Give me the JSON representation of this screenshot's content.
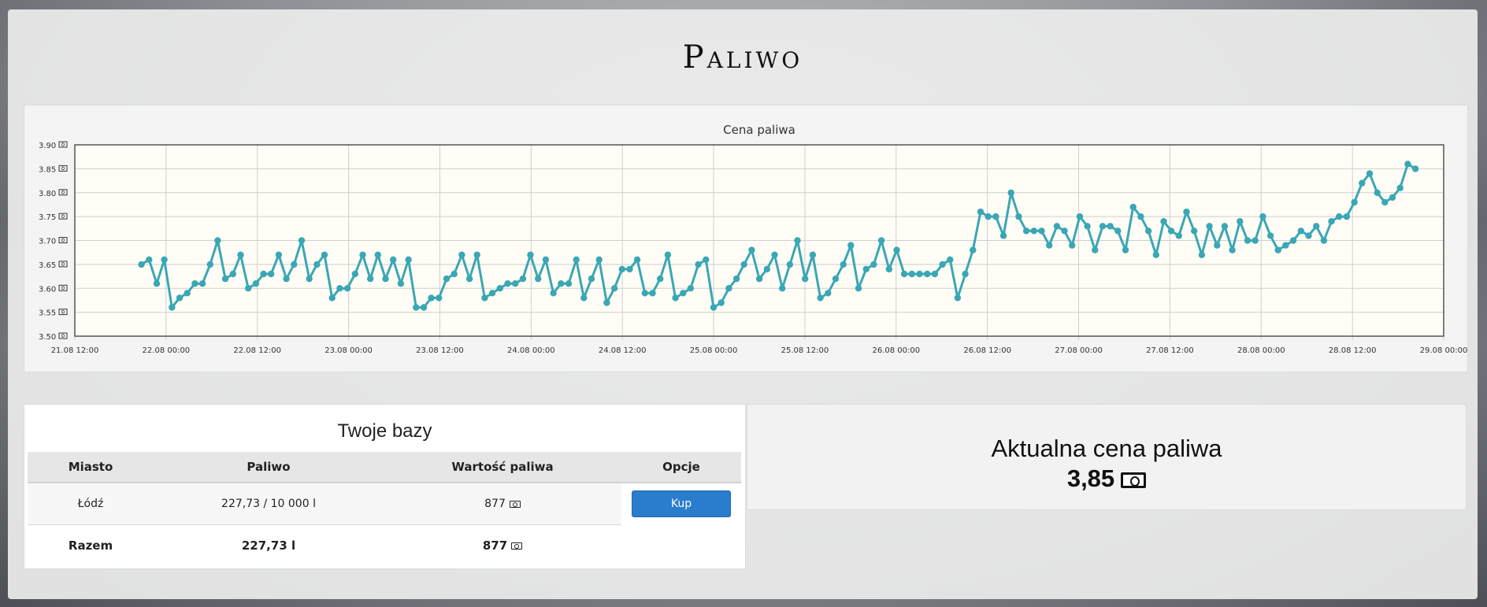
{
  "page": {
    "title": "Paliwo"
  },
  "chart_data": {
    "type": "line",
    "title": "Cena paliwa",
    "y_tick_labels": [
      "3.50",
      "3.55",
      "3.60",
      "3.65",
      "3.70",
      "3.75",
      "3.80",
      "3.85",
      "3.90"
    ],
    "ylim": [
      3.5,
      3.9
    ],
    "x_tick_labels": [
      "21.08 12:00",
      "22.08 00:00",
      "22.08 12:00",
      "23.08 00:00",
      "23.08 12:00",
      "24.08 00:00",
      "24.08 12:00",
      "25.08 00:00",
      "25.08 12:00",
      "26.08 00:00",
      "26.08 12:00",
      "27.08 00:00",
      "27.08 12:00",
      "28.08 00:00",
      "28.08 12:00",
      "29.08 00:00"
    ],
    "x_start": "21.08 12:00",
    "x_end": "29.08 00:00",
    "grid": true,
    "line_color": "#3aa7b5",
    "background_color": "#fffdf5",
    "series": [
      {
        "values": [
          3.65,
          3.66,
          3.61,
          3.66,
          3.56,
          3.58,
          3.59,
          3.61,
          3.61,
          3.65,
          3.7,
          3.62,
          3.63,
          3.67,
          3.6,
          3.61,
          3.63,
          3.63,
          3.67,
          3.62,
          3.65,
          3.7,
          3.62,
          3.65,
          3.67,
          3.58,
          3.6,
          3.6,
          3.63,
          3.67,
          3.62,
          3.67,
          3.62,
          3.66,
          3.61,
          3.66,
          3.56,
          3.56,
          3.58,
          3.58,
          3.62,
          3.63,
          3.67,
          3.62,
          3.67,
          3.58,
          3.59,
          3.6,
          3.61,
          3.61,
          3.62,
          3.67,
          3.62,
          3.66,
          3.59,
          3.61,
          3.61,
          3.66,
          3.58,
          3.62,
          3.66,
          3.57,
          3.6,
          3.64,
          3.64,
          3.66,
          3.59,
          3.59,
          3.62,
          3.67,
          3.58,
          3.59,
          3.6,
          3.65,
          3.66,
          3.56,
          3.57,
          3.6,
          3.62,
          3.65,
          3.68,
          3.62,
          3.64,
          3.67,
          3.6,
          3.65,
          3.7,
          3.62,
          3.67,
          3.58,
          3.59,
          3.62,
          3.65,
          3.69,
          3.6,
          3.64,
          3.65,
          3.7,
          3.64,
          3.68,
          3.63,
          3.63,
          3.63,
          3.63,
          3.63,
          3.65,
          3.66,
          3.58,
          3.63,
          3.68,
          3.76,
          3.75,
          3.75,
          3.71,
          3.8,
          3.75,
          3.72,
          3.72,
          3.72,
          3.69,
          3.73,
          3.72,
          3.69,
          3.75,
          3.73,
          3.68,
          3.73,
          3.73,
          3.72,
          3.68,
          3.77,
          3.75,
          3.72,
          3.67,
          3.74,
          3.72,
          3.71,
          3.76,
          3.72,
          3.67,
          3.73,
          3.69,
          3.73,
          3.68,
          3.74,
          3.7,
          3.7,
          3.75,
          3.71,
          3.68,
          3.69,
          3.7,
          3.72,
          3.71,
          3.73,
          3.7,
          3.74,
          3.75,
          3.75,
          3.78,
          3.82,
          3.84,
          3.8,
          3.78,
          3.79,
          3.81,
          3.86,
          3.85
        ]
      }
    ]
  },
  "bases": {
    "title": "Twoje bazy",
    "columns": [
      "Miasto",
      "Paliwo",
      "Wartość paliwa",
      "Opcje"
    ],
    "rows": [
      {
        "city": "Łódź",
        "fuel": "227,73 / 10 000 l",
        "value": "877",
        "action": "Kup"
      }
    ],
    "total": {
      "label": "Razem",
      "fuel": "227,73 l",
      "value": "877"
    }
  },
  "current_price": {
    "label": "Aktualna cena paliwa",
    "value": "3,85"
  }
}
